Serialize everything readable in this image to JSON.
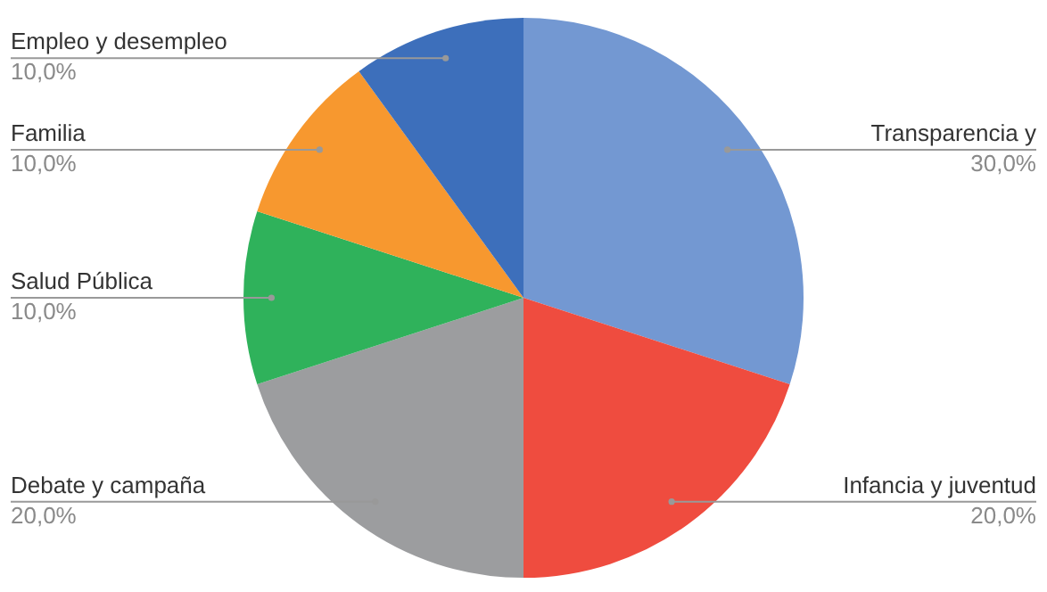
{
  "chart_data": {
    "type": "pie",
    "categories": [
      "Transparencia y",
      "Infancia y juventud",
      "Debate y campaña",
      "Salud Pública",
      "Familia",
      "Empleo y desempleo"
    ],
    "values": [
      30,
      20,
      20,
      10,
      10,
      10
    ],
    "colors": [
      "#7398d2",
      "#ef4c3f",
      "#9c9d9f",
      "#2fb25b",
      "#f7982f",
      "#3d6fbb"
    ],
    "value_labels": [
      "30,0%",
      "20,0%",
      "20,0%",
      "10,0%",
      "10,0%",
      "10,0%"
    ]
  }
}
